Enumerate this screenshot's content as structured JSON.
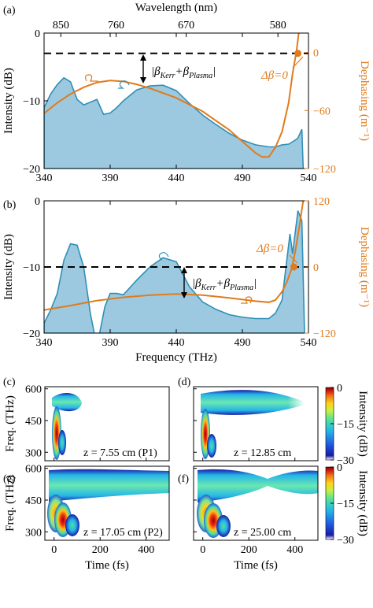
{
  "chart_data": [
    {
      "panel": "(a)",
      "type": "area",
      "top_axis_label": "Wavelength (nm)",
      "top_ticks": [
        {
          "label": "850",
          "freq": 352.7
        },
        {
          "label": "760",
          "freq": 394.5
        },
        {
          "label": "670",
          "freq": 447.5
        },
        {
          "label": "580",
          "freq": 516.9
        }
      ],
      "ylabel": "Intensity (dB)",
      "ylabel_right": "Dephasing (m⁻¹)",
      "xlim": [
        340,
        540
      ],
      "ylim": [
        -20,
        0
      ],
      "y2lim": [
        -120,
        20
      ],
      "x_ticks": [
        "340",
        "390",
        "440",
        "490",
        "540"
      ],
      "y_ticks": [
        "0",
        "−10",
        "−20"
      ],
      "y2_ticks": [
        "0",
        "−60",
        "−120"
      ],
      "dashed_level_db": -3,
      "annotation": "|βKerr+βPlasma|",
      "delta_beta_label": "Δβ=0",
      "delta_beta_freq": 532,
      "series": [
        {
          "kind": "intensity",
          "color": "#2f8fb8",
          "fill": "#9cc9df",
          "x": [
            340,
            345,
            350,
            355,
            360,
            365,
            370,
            375,
            380,
            385,
            390,
            395,
            400,
            410,
            420,
            430,
            440,
            450,
            460,
            470,
            480,
            490,
            500,
            510,
            515,
            520,
            525,
            530,
            532,
            535,
            536
          ],
          "y": [
            -11,
            -9,
            -7.6,
            -6.6,
            -7.2,
            -9.8,
            -10.6,
            -10.2,
            -9.8,
            -12,
            -11.8,
            -11,
            -10,
            -8.4,
            -7.8,
            -7.7,
            -8.5,
            -10.4,
            -12.1,
            -13.5,
            -14.8,
            -15.8,
            -16.5,
            -16.8,
            -16.8,
            -16.5,
            -16.4,
            -15.8,
            -15.5,
            -14.2,
            -20
          ]
        },
        {
          "kind": "dephasing",
          "color": "#e07b1c",
          "x": [
            340,
            350,
            360,
            370,
            380,
            390,
            400,
            410,
            420,
            440,
            460,
            480,
            490,
            500,
            505,
            510,
            515,
            520,
            525,
            528,
            531,
            534,
            537
          ],
          "y": [
            -63,
            -52,
            -43,
            -36,
            -31,
            -29,
            -30,
            -33,
            -37,
            -47,
            -61,
            -80,
            -92,
            -104,
            -108,
            -108,
            -98,
            -82,
            -52,
            -22,
            2,
            35,
            80
          ]
        }
      ]
    },
    {
      "panel": "(b)",
      "type": "area",
      "xlabel": "Frequency (THz)",
      "ylabel": "Intensity (dB)",
      "ylabel_right": "Dephasing (m⁻¹)",
      "xlim": [
        340,
        540
      ],
      "ylim": [
        -20,
        0
      ],
      "y2lim": [
        -120,
        120
      ],
      "x_ticks": [
        "340",
        "390",
        "440",
        "490",
        "540"
      ],
      "y_ticks": [
        "0",
        "−10",
        "−20"
      ],
      "y2_ticks": [
        "120",
        "0",
        "−120"
      ],
      "dashed_level_db": -10,
      "annotation": "|βKerr+βPlasma|",
      "delta_beta_label": "Δβ=0",
      "delta_beta_freq": 529,
      "series": [
        {
          "kind": "intensity",
          "color": "#2f8fb8",
          "fill": "#9cc9df",
          "x": [
            340,
            345,
            350,
            355,
            360,
            365,
            370,
            375,
            378,
            382,
            386,
            390,
            395,
            400,
            410,
            420,
            430,
            440,
            450,
            460,
            470,
            480,
            490,
            500,
            510,
            515,
            520,
            523,
            526,
            528,
            532,
            535,
            537
          ],
          "y": [
            -18.5,
            -16.5,
            -14,
            -9,
            -6.5,
            -6.7,
            -10,
            -17,
            -20,
            -20,
            -16,
            -14,
            -14,
            -14.2,
            -12,
            -10,
            -8.6,
            -9.2,
            -13,
            -15.3,
            -16.4,
            -17.2,
            -17.6,
            -17.8,
            -17.8,
            -17,
            -15,
            -10,
            -5,
            -8,
            -1.5,
            -3,
            -20
          ]
        },
        {
          "kind": "dephasing",
          "color": "#e07b1c",
          "x": [
            340,
            360,
            380,
            400,
            420,
            440,
            460,
            480,
            500,
            510,
            515,
            520,
            524,
            527,
            530,
            533,
            536
          ],
          "y": [
            -78,
            -70,
            -61,
            -55,
            -51,
            -49,
            -51,
            -56,
            -62,
            -64,
            -60,
            -45,
            -25,
            -5,
            28,
            72,
            120
          ]
        }
      ]
    },
    {
      "panel": "(c)",
      "type": "heatmap",
      "label": "z = 7.55 cm (P1)",
      "ylabel": "Freq. (THz)",
      "y_ticks": [
        "600",
        "450",
        "300"
      ],
      "ylim": [
        260,
        610
      ],
      "x_ticks": [
        "0",
        "200",
        "400"
      ],
      "xlim": [
        -40,
        500
      ]
    },
    {
      "panel": "(d)",
      "type": "heatmap",
      "label": "z = 12.85 cm",
      "ylim": [
        260,
        610
      ],
      "x_ticks": [
        "0",
        "200",
        "400"
      ],
      "xlim": [
        -40,
        500
      ]
    },
    {
      "panel": "(e)",
      "type": "heatmap",
      "label": "z = 17.05 cm (P2)",
      "xlabel": "Time (fs)",
      "ylabel": "Freq. (THz)",
      "y_ticks": [
        "600",
        "450",
        "300"
      ],
      "x_ticks": [
        "0",
        "200",
        "400"
      ],
      "ylim": [
        260,
        610
      ],
      "xlim": [
        -40,
        500
      ]
    },
    {
      "panel": "(f)",
      "type": "heatmap",
      "label": "z = 25.00 cm",
      "xlabel": "Time (fs)",
      "x_ticks": [
        "0",
        "200",
        "400"
      ],
      "ylim": [
        260,
        610
      ],
      "xlim": [
        -40,
        500
      ]
    },
    {
      "type": "colorbar",
      "label": "Intensity (dB)",
      "ticks": [
        "0",
        "−15",
        "−30"
      ],
      "range": [
        -30,
        0
      ],
      "colors": [
        "#ffffff",
        "#1a1aa8",
        "#1f5fe0",
        "#25b5e8",
        "#4fe0a0",
        "#c8f040",
        "#ffd21a",
        "#f07818",
        "#d02010",
        "#8a0000"
      ]
    }
  ]
}
